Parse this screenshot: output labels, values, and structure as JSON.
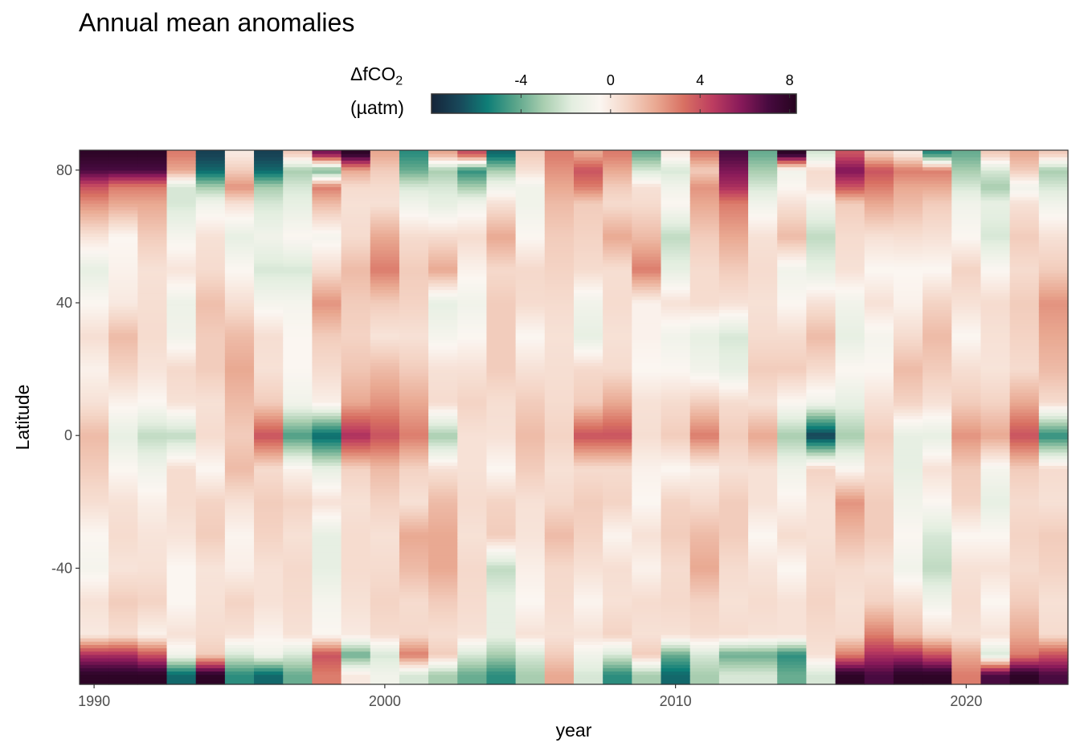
{
  "chart_data": {
    "type": "heatmap",
    "title": "Annual mean anomalies",
    "xlabel": "year",
    "ylabel": "Latitude",
    "x_ticks": [
      1990,
      2000,
      2010,
      2020
    ],
    "y_ticks": [
      80,
      40,
      0,
      -40
    ],
    "xlim": [
      1989.5,
      2023.5
    ],
    "ylim": [
      -75,
      86
    ],
    "years": [
      1990,
      1991,
      1992,
      1993,
      1994,
      1995,
      1996,
      1997,
      1998,
      1999,
      2000,
      2001,
      2002,
      2003,
      2004,
      2005,
      2006,
      2007,
      2008,
      2009,
      2010,
      2011,
      2012,
      2013,
      2014,
      2015,
      2016,
      2017,
      2018,
      2019,
      2020,
      2021,
      2022,
      2023
    ],
    "latitude_bands": [
      -72,
      -66,
      -60,
      -50,
      -40,
      -30,
      -20,
      -10,
      0,
      10,
      20,
      30,
      40,
      50,
      60,
      70,
      75,
      80,
      85
    ],
    "values_by_year": [
      [
        8,
        5,
        0,
        0.3,
        -0.8,
        -0.5,
        0.4,
        1,
        1.5,
        0.3,
        -0.3,
        0.4,
        -0.5,
        -1.5,
        0.2,
        2.5,
        4,
        7,
        8
      ],
      [
        8,
        5,
        0.4,
        1,
        0.2,
        0.5,
        0.3,
        -0.5,
        -1.5,
        -0.3,
        0.8,
        1.5,
        0,
        -0.3,
        -0.5,
        2,
        3,
        7,
        8
      ],
      [
        8,
        4,
        -0.3,
        0.8,
        0.3,
        0.2,
        -0.2,
        -1,
        -2.5,
        -0.5,
        0.2,
        0.5,
        0.4,
        0.3,
        1,
        2,
        3,
        7,
        8
      ],
      [
        -6,
        -1,
        0.3,
        -0.5,
        -0.5,
        0.2,
        0.5,
        0.5,
        -2.5,
        0.3,
        0.6,
        -1,
        -1.2,
        0.2,
        -0.8,
        -2,
        -2,
        2,
        3
      ],
      [
        8,
        1,
        0.5,
        0.3,
        0.2,
        1,
        0.8,
        -0.5,
        0.5,
        0.3,
        1,
        1,
        1.4,
        0.5,
        0.3,
        -1,
        -3,
        -6,
        -7
      ],
      [
        -5,
        -2,
        0.3,
        0.8,
        -0.2,
        -0.4,
        0.3,
        1.5,
        1,
        1.5,
        2,
        1.5,
        0.4,
        -0.5,
        -1.5,
        0.3,
        2.5,
        1,
        0
      ],
      [
        -6,
        -1,
        -0.3,
        0.3,
        0.3,
        0.8,
        1,
        0.5,
        4,
        1,
        0.3,
        0.4,
        -0.8,
        -2,
        -1,
        -2,
        -3,
        -6,
        -7
      ],
      [
        -4,
        -2,
        0.3,
        0.5,
        0.6,
        0.3,
        0.8,
        -0.3,
        -4.5,
        -1,
        -0.5,
        -0.5,
        -0.8,
        -2,
        -0.5,
        -1.5,
        -2,
        -3,
        1
      ],
      [
        3,
        4,
        -0.5,
        -0.8,
        -1.5,
        -1.5,
        0.3,
        -1.5,
        -6,
        -0.2,
        0.5,
        1,
        2.5,
        0.5,
        -0.8,
        1.5,
        3,
        -4,
        6
      ],
      [
        0,
        -4,
        0,
        0.3,
        0.5,
        0.5,
        0.3,
        0.8,
        5,
        2,
        1.2,
        0.8,
        1,
        1.5,
        0.5,
        0.3,
        0.5,
        2,
        8
      ],
      [
        -1,
        -2,
        0.5,
        0.8,
        0.5,
        0.3,
        0.8,
        1.5,
        4,
        2.5,
        1.5,
        0.2,
        1,
        3,
        2,
        0.3,
        0.5,
        1,
        2
      ],
      [
        -2,
        3,
        0.6,
        0.5,
        1.5,
        2,
        0.3,
        0.8,
        3,
        2,
        1,
        0.3,
        0.8,
        1,
        0.5,
        -1,
        -2,
        -4,
        -5
      ],
      [
        -3,
        1,
        0.4,
        1,
        2,
        2,
        1.5,
        0.3,
        -3,
        0.5,
        0.3,
        -0.8,
        -1.5,
        2,
        0.5,
        -1.5,
        -2,
        -3,
        2
      ],
      [
        -4,
        -2,
        0.3,
        0.5,
        0.6,
        0.3,
        0.5,
        0.3,
        0.3,
        0.8,
        0.3,
        -0.5,
        -1,
        -0.3,
        0.5,
        -1,
        -3,
        -5,
        4
      ],
      [
        -5,
        -3,
        -1.5,
        -1.5,
        -2.5,
        1,
        0.8,
        -0.5,
        0.3,
        0.4,
        1,
        1,
        1,
        0.6,
        2,
        0.3,
        -1,
        -3,
        -6
      ],
      [
        -3,
        -2,
        0.3,
        -0.5,
        -0.2,
        0.2,
        0.3,
        1,
        1.5,
        1,
        0.3,
        -0.5,
        0.5,
        0.6,
        -0.5,
        -1,
        -1,
        0.3,
        1
      ],
      [
        2,
        1,
        0.3,
        0.5,
        0.6,
        1.5,
        0.6,
        0.3,
        0.8,
        0.5,
        0.4,
        0.3,
        0.5,
        0.8,
        1,
        1.5,
        2,
        2.5,
        3
      ],
      [
        -2,
        -1,
        0.3,
        -0.4,
        0.3,
        0.8,
        1,
        0.5,
        4,
        1,
        0.6,
        -1.5,
        -1,
        0.5,
        0.8,
        1,
        3,
        4,
        2
      ],
      [
        -5,
        -2,
        0.8,
        0.3,
        0.4,
        -0.4,
        0.8,
        0.5,
        4,
        2,
        0.5,
        0.3,
        0.5,
        0.4,
        2,
        0.5,
        1,
        2,
        3
      ],
      [
        -3,
        1,
        0.3,
        0.5,
        -0.3,
        0.3,
        -0.5,
        -0.3,
        0.4,
        0.3,
        -0.5,
        -0.3,
        -0.3,
        3,
        1.5,
        0.5,
        0.3,
        -2,
        -4
      ],
      [
        -6,
        -4,
        0.3,
        0.6,
        0.5,
        1,
        0.8,
        -0.5,
        1,
        0.5,
        -0.5,
        -1,
        0.3,
        -1.5,
        -2.5,
        -0.5,
        -1,
        -2,
        0
      ],
      [
        -3,
        -2,
        0.5,
        0.8,
        2,
        1.5,
        0.5,
        -0.2,
        3,
        1,
        -1,
        -1.5,
        0.5,
        0.5,
        1,
        2,
        2.5,
        1,
        3
      ],
      [
        -2,
        -4,
        0.5,
        0.3,
        0.5,
        1,
        1,
        0.3,
        1,
        0.5,
        -1.5,
        -2,
        0.3,
        1,
        2,
        3,
        5,
        6,
        7
      ],
      [
        -2,
        -4,
        0.3,
        0.5,
        0.2,
        -0.5,
        0.3,
        0.3,
        2,
        0.3,
        1,
        0.5,
        0.3,
        0.5,
        0.3,
        -1,
        -2,
        -3,
        -4
      ],
      [
        -4,
        -5,
        0.3,
        0.3,
        -0.5,
        0.5,
        -0.3,
        -1,
        -3,
        -0.5,
        1,
        0.5,
        -0.5,
        -1,
        1.5,
        0.3,
        -0.5,
        -1,
        8
      ],
      [
        -2,
        0.3,
        0.5,
        0.8,
        0.5,
        0.3,
        0.3,
        0.8,
        -7,
        -1,
        0.5,
        1.5,
        0.3,
        -1.5,
        -2.5,
        -1,
        0.3,
        0.5,
        -2
      ],
      [
        8,
        3,
        0.5,
        0.3,
        0.5,
        1.5,
        2.5,
        -0.5,
        -3,
        -1.5,
        -0.5,
        -1.5,
        -1,
        0.3,
        0.5,
        1,
        4,
        6,
        4
      ],
      [
        7,
        5,
        3,
        0.8,
        0.3,
        1,
        1,
        0.5,
        1,
        0.3,
        -0.5,
        -0.8,
        0.3,
        -0.5,
        0.3,
        2,
        3,
        4,
        1
      ],
      [
        8,
        5,
        1.5,
        0.4,
        -1,
        -0.5,
        -1,
        -1.5,
        -1.5,
        0.8,
        1.5,
        0.5,
        -0.3,
        -0.5,
        0.4,
        1.5,
        2,
        3,
        0
      ],
      [
        8,
        4,
        0.5,
        -1,
        -2.5,
        -2,
        -0.5,
        0.3,
        -1.5,
        0.3,
        1,
        1.5,
        0.8,
        -0.5,
        0.3,
        1,
        2,
        3,
        -5
      ],
      [
        3,
        2,
        0.3,
        0.5,
        0.3,
        -0.5,
        0.8,
        1,
        2.5,
        1,
        0.4,
        -0.5,
        0.3,
        0.8,
        -0.5,
        -1,
        -2,
        -3,
        -4
      ],
      [
        7,
        -2,
        0.3,
        -0.5,
        0.3,
        -0.5,
        -1.5,
        -0.8,
        2,
        0.8,
        0.2,
        0.3,
        0.5,
        -0.5,
        -2,
        -1.5,
        -3,
        -2,
        1
      ],
      [
        8,
        3,
        2,
        1,
        0.5,
        0.8,
        0.5,
        1,
        4,
        2,
        0.5,
        0.8,
        1,
        0.5,
        1,
        0.3,
        -1,
        1,
        2
      ],
      [
        7,
        4,
        0.5,
        0.3,
        0.8,
        1,
        0.3,
        0.5,
        -5,
        0.5,
        1.5,
        2,
        2.5,
        1,
        0.3,
        -1,
        -2,
        -3,
        1
      ]
    ],
    "colorbar": {
      "title": "ΔfCO2",
      "title_main": "ΔfCO",
      "title_sub": "2",
      "unit": "(µatm)",
      "ticks": [
        -4,
        0,
        4,
        8
      ],
      "limits": [
        -8,
        8.3
      ],
      "colors": [
        "#15253a",
        "#18485a",
        "#0f7e77",
        "#5aa58a",
        "#a9ceb0",
        "#e3eee0",
        "#fbf6f1",
        "#f4d4c5",
        "#e9a891",
        "#d87062",
        "#bd3d60",
        "#891a5a",
        "#470a3f",
        "#26041f"
      ]
    }
  }
}
